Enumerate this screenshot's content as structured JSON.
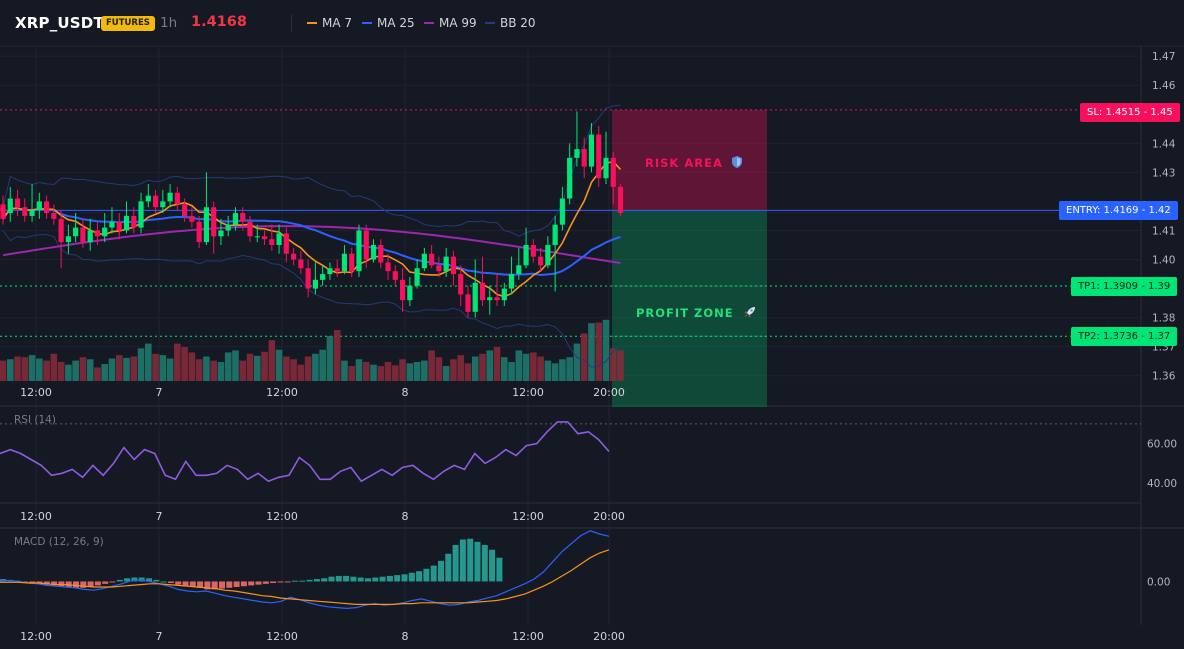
{
  "header": {
    "symbol": "XRP_USDT",
    "market_badge": "FUTURES",
    "timeframe": "1h",
    "last_price": "1.4168",
    "legend": [
      {
        "label": "MA 7",
        "color": "#f7931a"
      },
      {
        "label": "MA 25",
        "color": "#2962ff"
      },
      {
        "label": "MA 99",
        "color": "#9c27b0"
      },
      {
        "label": "BB 20",
        "color": "#1f3b8a"
      }
    ]
  },
  "price_axis": {
    "ticks": [
      "1.47",
      "1.46",
      "1.44",
      "1.43",
      "1.41",
      "1.40",
      "1.38",
      "1.37",
      "1.36"
    ],
    "tick_values": [
      1.47,
      1.46,
      1.44,
      1.43,
      1.41,
      1.4,
      1.38,
      1.37,
      1.36
    ],
    "range": [
      1.3575,
      1.4735
    ]
  },
  "time_axis": {
    "labels": [
      "12:00",
      "7",
      "12:00",
      "8",
      "12:00",
      "20:00"
    ]
  },
  "trade_levels": {
    "sl": {
      "label": "SL: 1.4515 - 1.45",
      "value": 1.4515,
      "color": "#f7105c"
    },
    "entry": {
      "label": "ENTRY: 1.4169 - 1.42",
      "value": 1.4169,
      "color": "#2962ff"
    },
    "tp1": {
      "label": "TP1: 1.3909 - 1.39",
      "value": 1.3909,
      "color": "#00e676"
    },
    "tp2": {
      "label": "TP2: 1.3736 - 1.37",
      "value": 1.3736,
      "color": "#00e676"
    }
  },
  "zones": {
    "risk_label": "RISK AREA",
    "profit_label": "PROFIT ZONE",
    "risk_color": "#f7105c",
    "profit_color": "#00e676",
    "risk_icon": "shield-icon",
    "profit_icon": "rocket-icon"
  },
  "candles": [
    [
      1.419,
      1.414,
      1.422,
      1.412
    ],
    [
      1.416,
      1.421,
      1.425,
      1.413
    ],
    [
      1.421,
      1.418,
      1.424,
      1.415
    ],
    [
      1.418,
      1.415,
      1.421,
      1.413
    ],
    [
      1.415,
      1.417,
      1.426,
      1.413
    ],
    [
      1.417,
      1.42,
      1.423,
      1.414
    ],
    [
      1.42,
      1.416,
      1.422,
      1.414
    ],
    [
      1.416,
      1.414,
      1.419,
      1.412
    ],
    [
      1.414,
      1.406,
      1.417,
      1.397
    ],
    [
      1.406,
      1.408,
      1.412,
      1.402
    ],
    [
      1.408,
      1.411,
      1.416,
      1.406
    ],
    [
      1.411,
      1.406,
      1.414,
      1.404
    ],
    [
      1.406,
      1.41,
      1.414,
      1.403
    ],
    [
      1.41,
      1.408,
      1.413,
      1.405
    ],
    [
      1.408,
      1.411,
      1.416,
      1.406
    ],
    [
      1.411,
      1.413,
      1.418,
      1.409
    ],
    [
      1.413,
      1.41,
      1.416,
      1.407
    ],
    [
      1.41,
      1.415,
      1.42,
      1.409
    ],
    [
      1.415,
      1.411,
      1.418,
      1.409
    ],
    [
      1.411,
      1.42,
      1.423,
      1.409
    ],
    [
      1.42,
      1.422,
      1.426,
      1.418
    ],
    [
      1.422,
      1.418,
      1.424,
      1.416
    ],
    [
      1.418,
      1.42,
      1.424,
      1.416
    ],
    [
      1.42,
      1.423,
      1.426,
      1.418
    ],
    [
      1.423,
      1.419,
      1.425,
      1.417
    ],
    [
      1.419,
      1.415,
      1.421,
      1.413
    ],
    [
      1.415,
      1.413,
      1.418,
      1.411
    ],
    [
      1.413,
      1.406,
      1.415,
      1.404
    ],
    [
      1.406,
      1.418,
      1.43,
      1.405
    ],
    [
      1.418,
      1.408,
      1.42,
      1.402
    ],
    [
      1.408,
      1.41,
      1.414,
      1.405
    ],
    [
      1.41,
      1.412,
      1.415,
      1.408
    ],
    [
      1.412,
      1.416,
      1.418,
      1.41
    ],
    [
      1.416,
      1.413,
      1.418,
      1.41
    ],
    [
      1.413,
      1.408,
      1.415,
      1.406
    ],
    [
      1.408,
      1.408,
      1.412,
      1.406
    ],
    [
      1.408,
      1.407,
      1.41,
      1.405
    ],
    [
      1.407,
      1.405,
      1.412,
      1.403
    ],
    [
      1.405,
      1.409,
      1.412,
      1.402
    ],
    [
      1.409,
      1.402,
      1.411,
      1.399
    ],
    [
      1.402,
      1.4,
      1.404,
      1.398
    ],
    [
      1.4,
      1.397,
      1.403,
      1.395
    ],
    [
      1.397,
      1.39,
      1.4,
      1.387
    ],
    [
      1.39,
      1.393,
      1.399,
      1.388
    ],
    [
      1.393,
      1.395,
      1.398,
      1.391
    ],
    [
      1.395,
      1.397,
      1.399,
      1.393
    ],
    [
      1.397,
      1.396,
      1.4,
      1.394
    ],
    [
      1.396,
      1.402,
      1.405,
      1.395
    ],
    [
      1.402,
      1.396,
      1.404,
      1.394
    ],
    [
      1.396,
      1.41,
      1.412,
      1.394
    ],
    [
      1.41,
      1.4,
      1.412,
      1.397
    ],
    [
      1.4,
      1.405,
      1.407,
      1.399
    ],
    [
      1.405,
      1.399,
      1.407,
      1.397
    ],
    [
      1.399,
      1.396,
      1.402,
      1.393
    ],
    [
      1.396,
      1.393,
      1.398,
      1.391
    ],
    [
      1.393,
      1.386,
      1.397,
      1.382
    ],
    [
      1.386,
      1.391,
      1.394,
      1.384
    ],
    [
      1.391,
      1.397,
      1.4,
      1.39
    ],
    [
      1.397,
      1.402,
      1.404,
      1.396
    ],
    [
      1.402,
      1.398,
      1.405,
      1.397
    ],
    [
      1.398,
      1.396,
      1.401,
      1.394
    ],
    [
      1.396,
      1.401,
      1.404,
      1.394
    ],
    [
      1.401,
      1.395,
      1.403,
      1.391
    ],
    [
      1.395,
      1.388,
      1.398,
      1.384
    ],
    [
      1.388,
      1.382,
      1.391,
      1.38
    ],
    [
      1.382,
      1.392,
      1.4,
      1.38
    ],
    [
      1.392,
      1.386,
      1.401,
      1.384
    ],
    [
      1.386,
      1.387,
      1.391,
      1.381
    ],
    [
      1.387,
      1.386,
      1.395,
      1.384
    ],
    [
      1.386,
      1.39,
      1.392,
      1.384
    ],
    [
      1.39,
      1.395,
      1.401,
      1.388
    ],
    [
      1.395,
      1.398,
      1.404,
      1.393
    ],
    [
      1.398,
      1.405,
      1.411,
      1.397
    ],
    [
      1.405,
      1.401,
      1.407,
      1.399
    ],
    [
      1.401,
      1.398,
      1.404,
      1.396
    ],
    [
      1.398,
      1.405,
      1.408,
      1.397
    ],
    [
      1.405,
      1.412,
      1.415,
      1.389
    ],
    [
      1.412,
      1.421,
      1.425,
      1.41
    ],
    [
      1.421,
      1.435,
      1.44,
      1.419
    ],
    [
      1.435,
      1.438,
      1.451,
      1.432
    ],
    [
      1.438,
      1.432,
      1.442,
      1.428
    ],
    [
      1.432,
      1.443,
      1.447,
      1.43
    ],
    [
      1.443,
      1.428,
      1.446,
      1.425
    ],
    [
      1.428,
      1.435,
      1.444,
      1.426
    ],
    [
      1.435,
      1.425,
      1.437,
      1.419
    ],
    [
      1.425,
      1.416,
      1.426,
      1.415
    ]
  ],
  "volume_pct": [
    0.3,
    0.32,
    0.36,
    0.35,
    0.38,
    0.33,
    0.3,
    0.4,
    0.28,
    0.24,
    0.3,
    0.35,
    0.32,
    0.2,
    0.25,
    0.33,
    0.38,
    0.34,
    0.36,
    0.48,
    0.55,
    0.4,
    0.38,
    0.33,
    0.55,
    0.5,
    0.42,
    0.32,
    0.36,
    0.3,
    0.28,
    0.42,
    0.45,
    0.3,
    0.4,
    0.37,
    0.43,
    0.6,
    0.46,
    0.36,
    0.32,
    0.24,
    0.36,
    0.4,
    0.46,
    0.66,
    0.75,
    0.3,
    0.22,
    0.32,
    0.28,
    0.24,
    0.22,
    0.28,
    0.23,
    0.32,
    0.26,
    0.28,
    0.3,
    0.45,
    0.35,
    0.22,
    0.32,
    0.38,
    0.26,
    0.36,
    0.4,
    0.45,
    0.5,
    0.35,
    0.28,
    0.45,
    0.4,
    0.42,
    0.36,
    0.3,
    0.26,
    0.32,
    0.35,
    0.55,
    0.7,
    0.85,
    0.86,
    0.9,
    0.48,
    0.45,
    0.46
  ],
  "rsi": {
    "label": "RSI (14)",
    "ticks": [
      "60.00",
      "40.00"
    ],
    "tick_values": [
      60,
      40
    ],
    "range": [
      30,
      78
    ],
    "overbought": 70,
    "values": [
      55,
      57,
      55,
      52,
      49,
      44,
      45,
      47,
      43,
      49,
      44,
      50,
      58,
      52,
      57,
      55,
      44,
      42,
      51,
      44,
      44,
      45,
      49,
      47,
      42,
      45,
      41,
      43,
      44,
      53,
      49,
      42,
      42,
      46,
      48,
      41,
      44,
      47,
      44,
      48,
      49,
      45,
      42,
      46,
      49,
      47,
      55,
      50,
      53,
      57,
      54,
      59,
      60,
      66,
      71,
      71,
      65,
      66,
      62,
      56
    ]
  },
  "macd": {
    "label": "MACD (12, 26, 9)",
    "ticks": [
      "0.00"
    ],
    "tick_values": [
      0
    ],
    "range": [
      -0.0055,
      0.0065
    ],
    "macd": [
      0.0002,
      0.0001,
      0.0,
      -0.0002,
      -0.0003,
      -0.0005,
      -0.0006,
      -0.0007,
      -0.0008,
      -0.001,
      -0.0011,
      -0.0009,
      -0.0006,
      -0.0003,
      0.0001,
      0.0002,
      0.0,
      -0.0003,
      -0.0006,
      -0.001,
      -0.0012,
      -0.0013,
      -0.0012,
      -0.0015,
      -0.0018,
      -0.002,
      -0.0022,
      -0.0024,
      -0.0026,
      -0.0027,
      -0.0025,
      -0.002,
      -0.0023,
      -0.0027,
      -0.003,
      -0.0032,
      -0.0033,
      -0.0034,
      -0.0033,
      -0.003,
      -0.0028,
      -0.003,
      -0.0029,
      -0.0027,
      -0.0024,
      -0.0022,
      -0.0025,
      -0.0028,
      -0.003,
      -0.0029,
      -0.0026,
      -0.0024,
      -0.0021,
      -0.0018,
      -0.0013,
      -0.0008,
      -0.0003,
      0.0003,
      0.0012,
      0.0025,
      0.0038,
      0.0048,
      0.0058,
      0.0064,
      0.006,
      0.0057
    ],
    "signal": [
      -0.0001,
      -0.0001,
      -0.0001,
      -0.0002,
      -0.0002,
      -0.0003,
      -0.0004,
      -0.0004,
      -0.0005,
      -0.0006,
      -0.0007,
      -0.0007,
      -0.0007,
      -0.0006,
      -0.0005,
      -0.0004,
      -0.0003,
      -0.0003,
      -0.0004,
      -0.0005,
      -0.0006,
      -0.0007,
      -0.0008,
      -0.0009,
      -0.0011,
      -0.0012,
      -0.0014,
      -0.0016,
      -0.0018,
      -0.0019,
      -0.0021,
      -0.0022,
      -0.0023,
      -0.0024,
      -0.0025,
      -0.0026,
      -0.0027,
      -0.0028,
      -0.0029,
      -0.0029,
      -0.0029,
      -0.0029,
      -0.0029,
      -0.0028,
      -0.0028,
      -0.0027,
      -0.0027,
      -0.0027,
      -0.0027,
      -0.0027,
      -0.0027,
      -0.0026,
      -0.0025,
      -0.0024,
      -0.0022,
      -0.0019,
      -0.0016,
      -0.0011,
      -0.0006,
      0.0,
      0.0007,
      0.0014,
      0.0022,
      0.003,
      0.0036,
      0.004
    ],
    "hist": [
      0.0003,
      0.0002,
      0.0001,
      -0.0001,
      -0.0002,
      -0.0003,
      -0.0004,
      -0.0005,
      -0.0006,
      -0.0007,
      -0.0008,
      -0.0008,
      -0.0007,
      -0.0005,
      -0.0003,
      -0.0001,
      0.0002,
      0.0004,
      0.0005,
      0.0005,
      0.0004,
      0.0002,
      0.0,
      -0.0002,
      -0.0004,
      -0.0006,
      -0.0007,
      -0.0008,
      -0.001,
      -0.001,
      -0.0009,
      -0.0008,
      -0.0007,
      -0.0006,
      -0.0005,
      -0.0004,
      -0.0003,
      -0.0002,
      -0.0001,
      -0.0001,
      0.0001,
      0.0001,
      0.0002,
      0.0003,
      0.0004,
      0.0006,
      0.0007,
      0.0007,
      0.0006,
      0.0005,
      0.0004,
      0.0005,
      0.0006,
      0.0007,
      0.0008,
      0.0009,
      0.0011,
      0.0013,
      0.0016,
      0.002,
      0.0026,
      0.0035,
      0.0046,
      0.0053,
      0.0054,
      0.005,
      0.0046,
      0.004,
      0.003
    ]
  }
}
